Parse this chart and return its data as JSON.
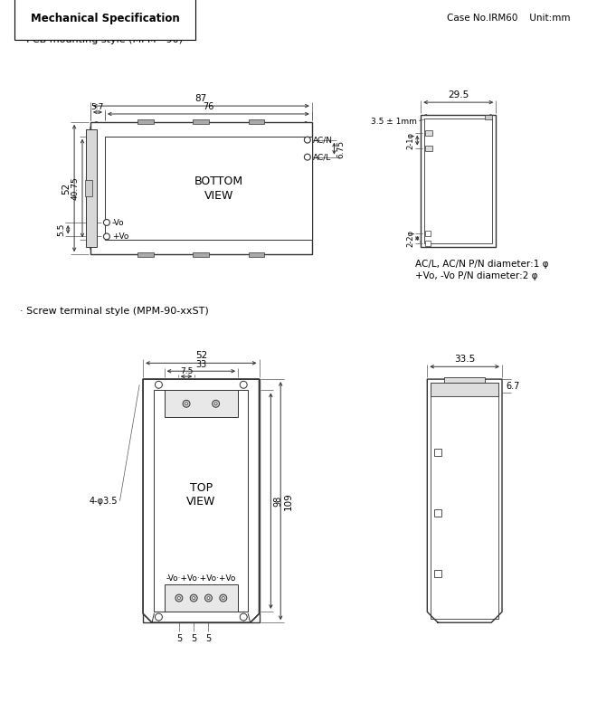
{
  "title": "Mechanical Specification",
  "case_info": "Case No.IRM60    Unit:mm",
  "section1_label": "· PCB mounting style (MPM - 90)",
  "section2_label": "· Screw terminal style (MPM-90-xxST)",
  "pin_note1": "AC/L, AC/N P/N diameter:1 φ",
  "pin_note2": "+Vo, -Vo P/N diameter:2 φ",
  "bg_color": "#ffffff",
  "line_color": "#333333"
}
